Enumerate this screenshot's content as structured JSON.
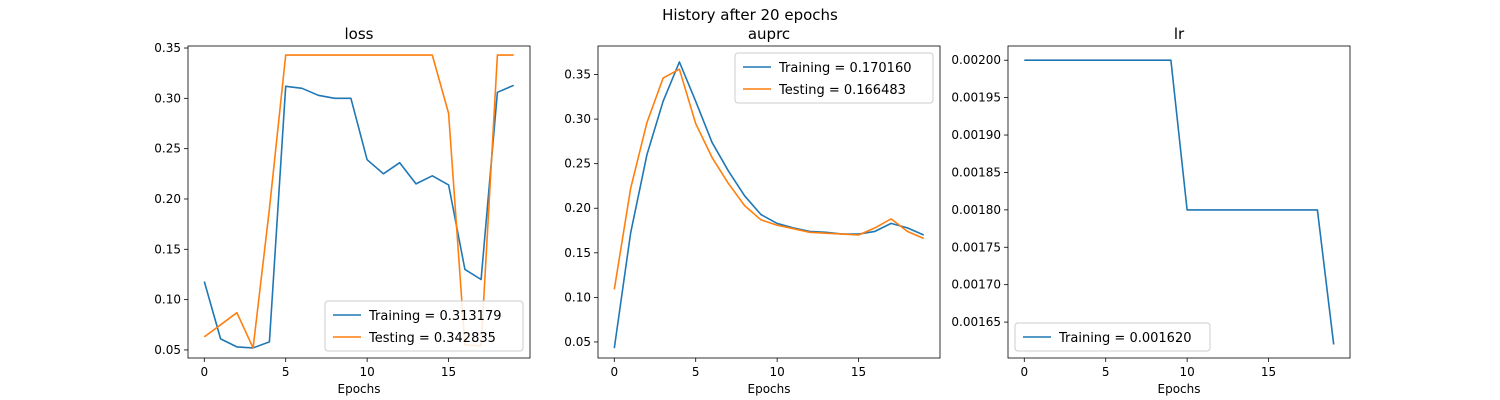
{
  "figure": {
    "suptitle": "History after 20 epochs",
    "colors": {
      "training": "#1f77b4",
      "testing": "#ff7f0e"
    }
  },
  "chart_data": [
    {
      "type": "line",
      "title": "loss",
      "xlabel": "Epochs",
      "ylabel": "",
      "xlim": [
        -1,
        20
      ],
      "ylim": [
        0.042,
        0.352
      ],
      "xticks": [
        0,
        5,
        10,
        15
      ],
      "yticks": [
        0.05,
        0.1,
        0.15,
        0.2,
        0.25,
        0.3,
        0.35
      ],
      "ytick_labels": [
        "0.05",
        "0.10",
        "0.15",
        "0.20",
        "0.25",
        "0.30",
        "0.35"
      ],
      "legend_position": "bottom-right",
      "x": [
        0,
        1,
        2,
        3,
        4,
        5,
        6,
        7,
        8,
        9,
        10,
        11,
        12,
        13,
        14,
        15,
        16,
        17,
        18,
        19
      ],
      "series": [
        {
          "name": "Training = 0.313179",
          "color": "#1f77b4",
          "values": [
            0.118,
            0.061,
            0.053,
            0.052,
            0.058,
            0.312,
            0.31,
            0.303,
            0.3,
            0.3,
            0.239,
            0.225,
            0.236,
            0.215,
            0.223,
            0.214,
            0.13,
            0.12,
            0.306,
            0.313
          ]
        },
        {
          "name": "Testing = 0.342835",
          "color": "#ff7f0e",
          "values": [
            0.063,
            0.075,
            0.087,
            0.052,
            0.19,
            0.343,
            0.343,
            0.343,
            0.343,
            0.343,
            0.343,
            0.343,
            0.343,
            0.343,
            0.343,
            0.285,
            0.055,
            0.054,
            0.343,
            0.343
          ]
        }
      ]
    },
    {
      "type": "line",
      "title": "auprc",
      "xlabel": "Epochs",
      "ylabel": "",
      "xlim": [
        -1,
        20
      ],
      "ylim": [
        0.032,
        0.382
      ],
      "xticks": [
        0,
        5,
        10,
        15
      ],
      "yticks": [
        0.05,
        0.1,
        0.15,
        0.2,
        0.25,
        0.3,
        0.35
      ],
      "ytick_labels": [
        "0.05",
        "0.10",
        "0.15",
        "0.20",
        "0.25",
        "0.30",
        "0.35"
      ],
      "legend_position": "top-right",
      "x": [
        0,
        1,
        2,
        3,
        4,
        5,
        6,
        7,
        8,
        9,
        10,
        11,
        12,
        13,
        14,
        15,
        16,
        17,
        18,
        19
      ],
      "series": [
        {
          "name": "Training = 0.170160",
          "color": "#1f77b4",
          "values": [
            0.043,
            0.172,
            0.26,
            0.32,
            0.364,
            0.32,
            0.274,
            0.242,
            0.214,
            0.193,
            0.183,
            0.178,
            0.174,
            0.173,
            0.171,
            0.171,
            0.174,
            0.183,
            0.178,
            0.17
          ]
        },
        {
          "name": "Testing = 0.166483",
          "color": "#ff7f0e",
          "values": [
            0.109,
            0.222,
            0.296,
            0.346,
            0.356,
            0.295,
            0.257,
            0.228,
            0.203,
            0.187,
            0.181,
            0.177,
            0.173,
            0.172,
            0.171,
            0.17,
            0.178,
            0.188,
            0.174,
            0.166
          ]
        }
      ]
    },
    {
      "type": "line",
      "title": "lr",
      "xlabel": "Epochs",
      "ylabel": "",
      "xlim": [
        -1,
        20
      ],
      "ylim": [
        0.001602,
        0.002019
      ],
      "xticks": [
        0,
        5,
        10,
        15
      ],
      "yticks": [
        0.00165,
        0.0017,
        0.00175,
        0.0018,
        0.00185,
        0.0019,
        0.00195,
        0.002
      ],
      "ytick_labels": [
        "0.00165",
        "0.00170",
        "0.00175",
        "0.00180",
        "0.00185",
        "0.00190",
        "0.00195",
        "0.00200"
      ],
      "legend_position": "bottom-left",
      "x": [
        0,
        1,
        2,
        3,
        4,
        5,
        6,
        7,
        8,
        9,
        10,
        11,
        12,
        13,
        14,
        15,
        16,
        17,
        18,
        19
      ],
      "series": [
        {
          "name": "Training = 0.001620",
          "color": "#1f77b4",
          "values": [
            0.002,
            0.002,
            0.002,
            0.002,
            0.002,
            0.002,
            0.002,
            0.002,
            0.002,
            0.002,
            0.0018,
            0.0018,
            0.0018,
            0.0018,
            0.0018,
            0.0018,
            0.0018,
            0.0018,
            0.0018,
            0.00162
          ]
        }
      ]
    }
  ]
}
